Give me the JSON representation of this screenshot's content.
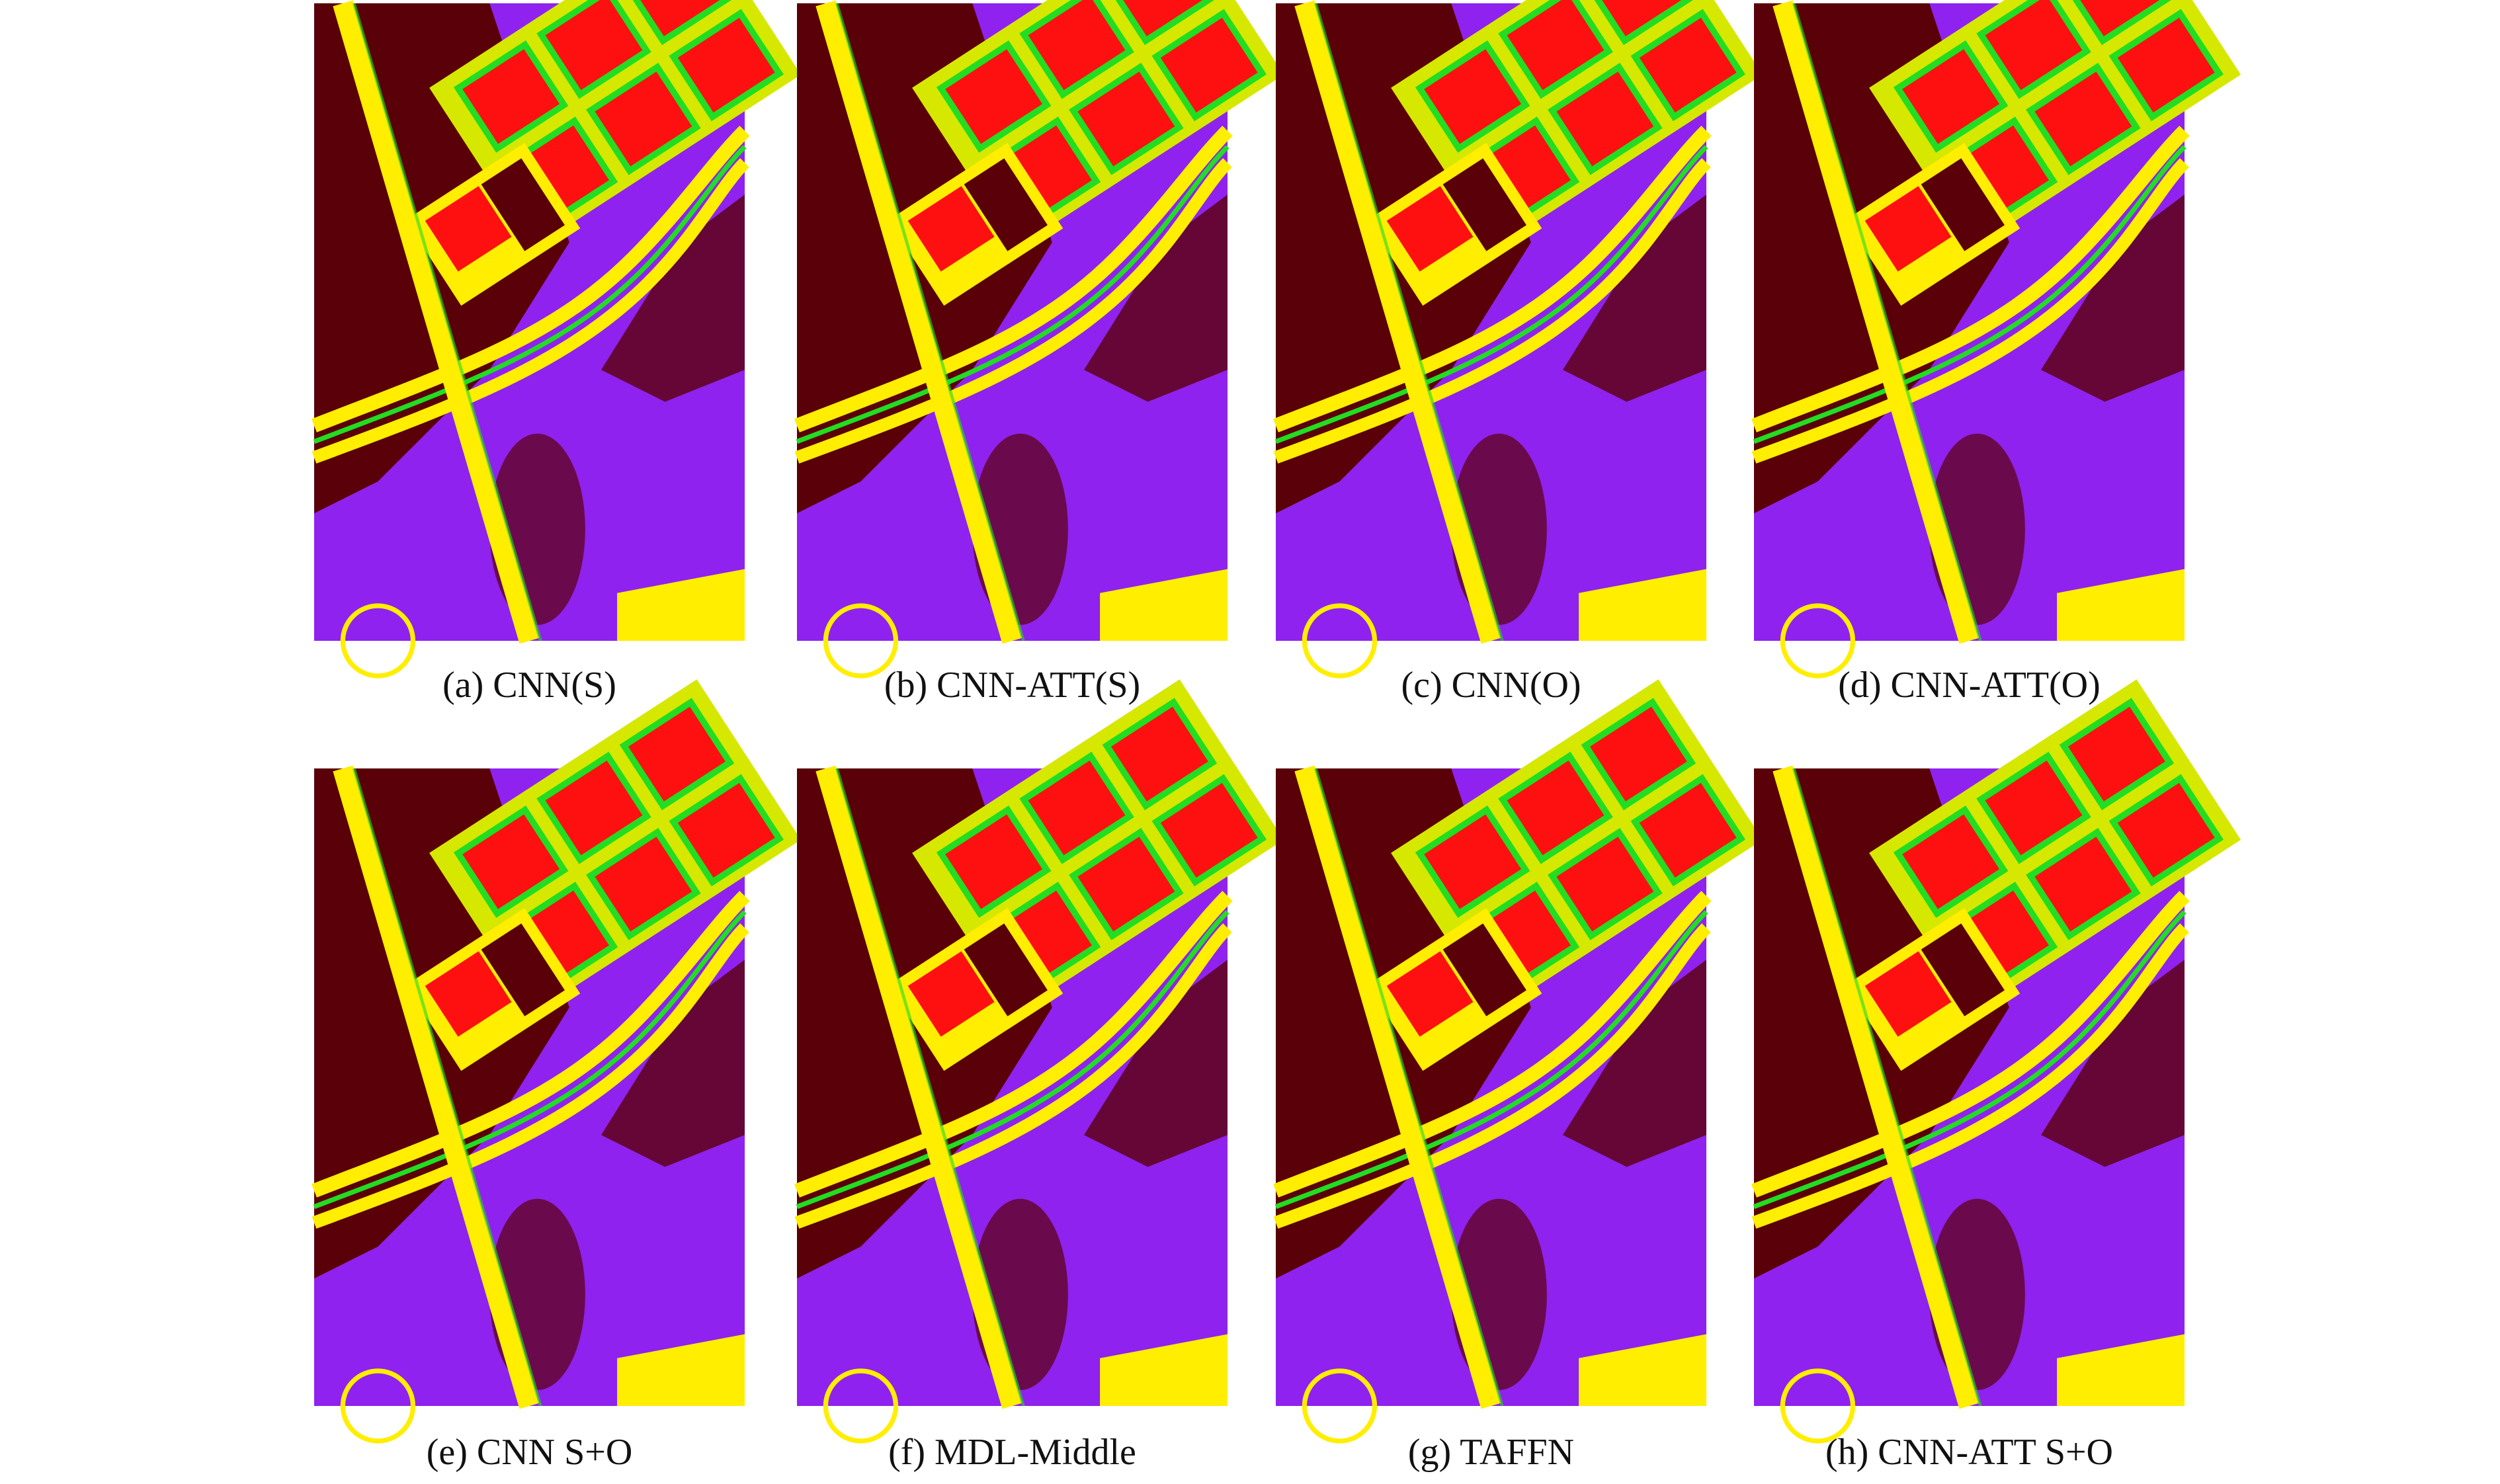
{
  "figure": {
    "panels": [
      {
        "caption": "(a) CNN(S)"
      },
      {
        "caption": "(b) CNN-ATT(S)"
      },
      {
        "caption": "(c) CNN(O)"
      },
      {
        "caption": "(d) CNN-ATT(O)"
      },
      {
        "caption": "(e) CNN S+O"
      },
      {
        "caption": "(f) MDL-Middle"
      },
      {
        "caption": "(g) TAFFN"
      },
      {
        "caption": "(h) CNN-ATT S+O"
      }
    ]
  }
}
